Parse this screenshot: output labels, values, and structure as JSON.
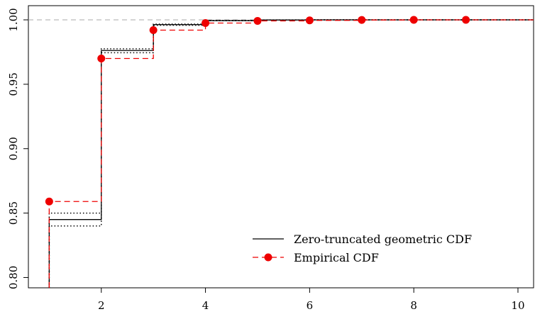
{
  "chart_data": {
    "type": "line",
    "title": "",
    "xlabel": "",
    "ylabel": "",
    "xlim": [
      0.6,
      10.3
    ],
    "ylim": [
      0.792,
      1.011
    ],
    "x_ticks": [
      2,
      4,
      6,
      8,
      10
    ],
    "y_ticks": [
      0.8,
      0.85,
      0.9,
      0.95,
      1.0
    ],
    "x_tick_labels": [
      "2",
      "4",
      "6",
      "8",
      "10"
    ],
    "y_tick_labels": [
      "0.80",
      "0.85",
      "0.90",
      "0.95",
      "1.00"
    ],
    "reference_line_y": 1.0,
    "grid": false,
    "legend_position": "bottom-right",
    "series": [
      {
        "name": "Zero-truncated geometric CDF",
        "style": "step-solid",
        "color": "#000000",
        "x": [
          1,
          2,
          3,
          4,
          5,
          6,
          7,
          8,
          9,
          10
        ],
        "y": [
          0.845,
          0.9762,
          0.9963,
          0.9994,
          0.9999,
          1.0,
          1.0,
          1.0,
          1.0,
          1.0
        ]
      },
      {
        "name": "",
        "style": "step-dotted",
        "color": "#000000",
        "x": [
          1,
          2,
          3,
          4,
          5,
          6,
          7,
          8,
          9,
          10
        ],
        "y": [
          0.85,
          0.9775,
          0.9967,
          0.9995,
          0.99993,
          1.0,
          1.0,
          1.0,
          1.0,
          1.0
        ]
      },
      {
        "name": "",
        "style": "step-dotted",
        "color": "#000000",
        "x": [
          1,
          2,
          3,
          4,
          5,
          6,
          7,
          8,
          9,
          10
        ],
        "y": [
          0.84,
          0.9745,
          0.9958,
          0.9993,
          0.99989,
          1.0,
          1.0,
          1.0,
          1.0,
          1.0
        ]
      },
      {
        "name": "Empirical CDF",
        "style": "step-dashed-points",
        "color": "#ee0000",
        "x": [
          1,
          2,
          3,
          4,
          5,
          6,
          7,
          8,
          9
        ],
        "y": [
          0.859,
          0.97,
          0.992,
          0.9975,
          0.9992,
          0.9996,
          0.9999,
          1.0,
          1.0
        ]
      }
    ]
  }
}
